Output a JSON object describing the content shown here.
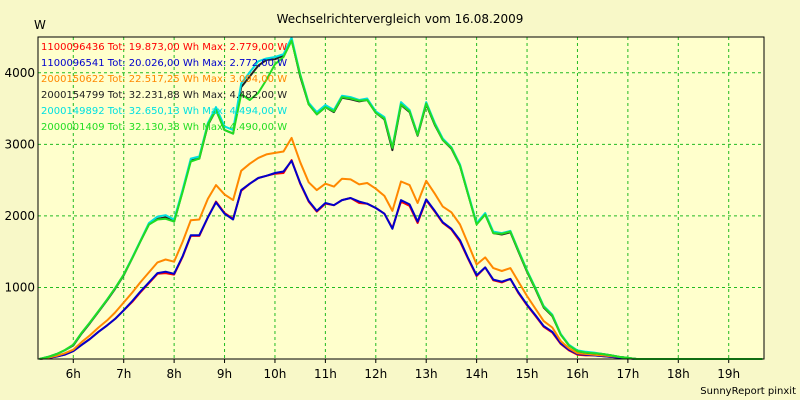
{
  "chart_data": {
    "type": "line",
    "title": "Wechselrichtervergleich vom 16.08.2009",
    "ylabel": "W",
    "xlabel": "",
    "ylim": [
      0,
      4500
    ],
    "xlim": [
      5.3,
      19.7
    ],
    "grid": true,
    "y_ticks": [
      1000,
      2000,
      3000,
      4000
    ],
    "x_ticks": [
      {
        "x": 6,
        "label": "6h"
      },
      {
        "x": 7,
        "label": "7h"
      },
      {
        "x": 8,
        "label": "8h"
      },
      {
        "x": 9,
        "label": "9h"
      },
      {
        "x": 10,
        "label": "10h"
      },
      {
        "x": 11,
        "label": "11h"
      },
      {
        "x": 12,
        "label": "12h"
      },
      {
        "x": 13,
        "label": "13h"
      },
      {
        "x": 14,
        "label": "14h"
      },
      {
        "x": 15,
        "label": "15h"
      },
      {
        "x": 16,
        "label": "16h"
      },
      {
        "x": 17,
        "label": "17h"
      },
      {
        "x": 18,
        "label": "18h"
      },
      {
        "x": 19,
        "label": "19h"
      }
    ],
    "x": [
      5.33,
      5.5,
      5.67,
      5.83,
      6.0,
      6.17,
      6.33,
      6.5,
      6.67,
      6.83,
      7.0,
      7.17,
      7.33,
      7.5,
      7.67,
      7.83,
      8.0,
      8.17,
      8.33,
      8.5,
      8.67,
      8.83,
      9.0,
      9.17,
      9.33,
      9.5,
      9.67,
      9.83,
      10.0,
      10.17,
      10.33,
      10.5,
      10.67,
      10.83,
      11.0,
      11.17,
      11.33,
      11.5,
      11.67,
      11.83,
      12.0,
      12.17,
      12.33,
      12.5,
      12.67,
      12.83,
      13.0,
      13.17,
      13.33,
      13.5,
      13.67,
      13.83,
      14.0,
      14.17,
      14.33,
      14.5,
      14.67,
      14.83,
      15.0,
      15.17,
      15.33,
      15.5,
      15.67,
      15.83,
      16.0,
      16.17,
      16.33,
      16.5,
      16.67,
      16.83,
      17.0,
      17.17,
      17.33,
      17.5,
      17.67,
      17.83,
      18.0,
      18.17,
      18.33,
      18.5,
      18.67,
      18.83,
      19.0,
      19.17,
      19.33,
      19.5,
      19.67
    ],
    "series": [
      {
        "name": "1100096436",
        "legend": "1100096436 Tot: 19.873,00 Wh Max: 2.779,00 W",
        "color": "#ff0000",
        "values": [
          0,
          15,
          35,
          60,
          110,
          200,
          280,
          380,
          470,
          560,
          680,
          800,
          930,
          1060,
          1190,
          1200,
          1180,
          1430,
          1720,
          1720,
          1980,
          2200,
          2040,
          1960,
          2350,
          2450,
          2530,
          2560,
          2590,
          2600,
          2780,
          2450,
          2200,
          2060,
          2170,
          2150,
          2220,
          2250,
          2180,
          2170,
          2110,
          2030,
          1830,
          2200,
          2140,
          1900,
          2220,
          2060,
          1900,
          1810,
          1640,
          1400,
          1160,
          1280,
          1100,
          1070,
          1120,
          920,
          750,
          600,
          450,
          370,
          210,
          120,
          60,
          50,
          50,
          40,
          30,
          20,
          10,
          0,
          0,
          0,
          0,
          0,
          0,
          0,
          0,
          0,
          0,
          0,
          0,
          0,
          0,
          0,
          0
        ]
      },
      {
        "name": "1100096541",
        "legend": "1100096541 Tot: 20.026,00 Wh Max: 2.772,00 W",
        "color": "#0000cc",
        "values": [
          0,
          15,
          35,
          60,
          110,
          200,
          280,
          380,
          470,
          560,
          680,
          810,
          940,
          1070,
          1200,
          1220,
          1190,
          1440,
          1730,
          1730,
          1980,
          2190,
          2030,
          1950,
          2360,
          2450,
          2530,
          2560,
          2600,
          2620,
          2770,
          2460,
          2210,
          2070,
          2180,
          2150,
          2220,
          2250,
          2200,
          2170,
          2110,
          2030,
          1820,
          2220,
          2160,
          1920,
          2230,
          2070,
          1910,
          1820,
          1660,
          1410,
          1170,
          1280,
          1110,
          1080,
          1120,
          930,
          760,
          610,
          460,
          380,
          220,
          130,
          70,
          60,
          50,
          40,
          30,
          20,
          10,
          0,
          0,
          0,
          0,
          0,
          0,
          0,
          0,
          0,
          0,
          0,
          0,
          0,
          0,
          0,
          0
        ]
      },
      {
        "name": "2000150622",
        "legend": "2000150622 Tot: 22.517,25 Wh Max: 3.094,00 W",
        "color": "#ff8800",
        "values": [
          0,
          20,
          45,
          80,
          130,
          240,
          330,
          440,
          540,
          650,
          790,
          930,
          1070,
          1210,
          1350,
          1390,
          1360,
          1640,
          1940,
          1950,
          2240,
          2430,
          2300,
          2220,
          2630,
          2730,
          2810,
          2860,
          2880,
          2900,
          3090,
          2750,
          2470,
          2360,
          2450,
          2410,
          2520,
          2510,
          2440,
          2460,
          2380,
          2280,
          2070,
          2480,
          2430,
          2180,
          2490,
          2310,
          2130,
          2050,
          1880,
          1610,
          1320,
          1420,
          1270,
          1230,
          1270,
          1080,
          880,
          700,
          530,
          440,
          250,
          150,
          80,
          70,
          60,
          50,
          40,
          30,
          15,
          0,
          0,
          0,
          0,
          0,
          0,
          0,
          0,
          0,
          0,
          0,
          0,
          0,
          0,
          0,
          0
        ]
      },
      {
        "name": "2000154799",
        "legend": "2000154799 Tot: 32.231,88 Wh Max: 4.482,00 W",
        "color": "#222222",
        "values": [
          0,
          30,
          70,
          120,
          190,
          360,
          500,
          660,
          820,
          980,
          1170,
          1410,
          1640,
          1880,
          1960,
          1980,
          1920,
          2350,
          2780,
          2800,
          3270,
          3480,
          3200,
          3150,
          3800,
          3950,
          4100,
          4180,
          4190,
          4240,
          4460,
          3950,
          3560,
          3420,
          3520,
          3450,
          3650,
          3630,
          3600,
          3620,
          3440,
          3350,
          2920,
          3550,
          3450,
          3120,
          3560,
          3270,
          3060,
          2940,
          2700,
          2300,
          1890,
          2020,
          1760,
          1740,
          1770,
          1500,
          1220,
          970,
          720,
          600,
          340,
          190,
          110,
          90,
          80,
          70,
          50,
          30,
          15,
          0,
          0,
          0,
          0,
          0,
          0,
          0,
          0,
          0,
          0,
          0,
          0,
          0,
          0,
          0,
          0
        ]
      },
      {
        "name": "2000149892",
        "legend": "2000149892 Tot: 32.650,13 Wh Max: 4.494,00 W",
        "color": "#00e0e0",
        "values": [
          0,
          30,
          70,
          120,
          200,
          370,
          510,
          670,
          830,
          990,
          1180,
          1420,
          1650,
          1900,
          1990,
          2010,
          1950,
          2370,
          2800,
          2830,
          3300,
          3520,
          3250,
          3200,
          3850,
          4010,
          4160,
          4200,
          4220,
          4260,
          4490,
          3980,
          3580,
          3450,
          3550,
          3480,
          3680,
          3660,
          3620,
          3640,
          3460,
          3380,
          2960,
          3590,
          3480,
          3140,
          3590,
          3300,
          3080,
          2960,
          2720,
          2320,
          1900,
          2040,
          1780,
          1760,
          1790,
          1520,
          1240,
          990,
          740,
          620,
          350,
          200,
          120,
          100,
          90,
          70,
          50,
          30,
          15,
          0,
          0,
          0,
          0,
          0,
          0,
          0,
          0,
          0,
          0,
          0,
          0,
          0,
          0,
          0,
          0
        ]
      },
      {
        "name": "2000001409",
        "legend": "2000001409 Tot: 32.130,38 Wh Max: 4.490,00 W",
        "color": "#22dd22",
        "values": [
          0,
          30,
          70,
          125,
          200,
          370,
          510,
          670,
          830,
          990,
          1180,
          1410,
          1640,
          1880,
          1950,
          1960,
          1920,
          2340,
          2760,
          2800,
          3280,
          3480,
          3200,
          3150,
          3700,
          3620,
          3720,
          3900,
          4120,
          4220,
          4450,
          3970,
          3560,
          3420,
          3520,
          3460,
          3660,
          3640,
          3610,
          3620,
          3440,
          3360,
          2950,
          3560,
          3460,
          3130,
          3570,
          3280,
          3060,
          2950,
          2700,
          2300,
          1880,
          2020,
          1760,
          1750,
          1780,
          1510,
          1230,
          980,
          730,
          610,
          340,
          190,
          110,
          90,
          80,
          70,
          50,
          30,
          15,
          0,
          0,
          0,
          0,
          0,
          0,
          0,
          0,
          0,
          0,
          0,
          0,
          0,
          0,
          0,
          0
        ]
      }
    ]
  },
  "footer": "SunnyReport pinxit",
  "colors": {
    "background": "#f8f8c8",
    "plot_background": "#ffffcc",
    "grid": "#22bb22"
  }
}
